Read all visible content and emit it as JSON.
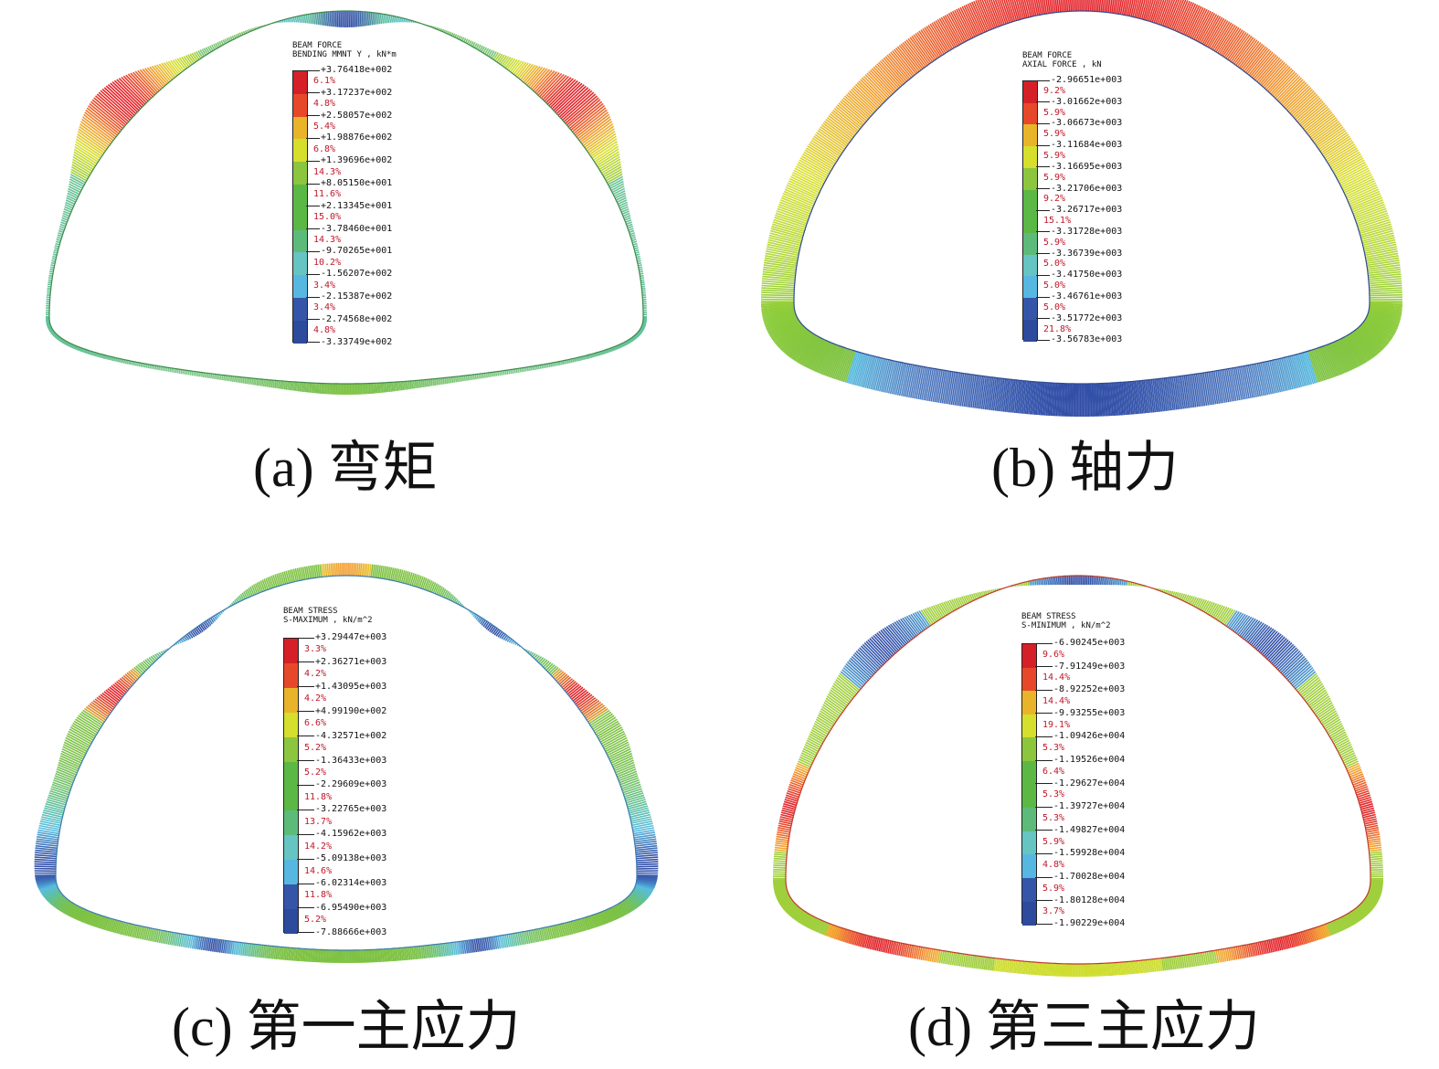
{
  "colors": [
    "#d62028",
    "#e8482a",
    "#e9b42a",
    "#d6df2c",
    "#8cc63e",
    "#5cb844",
    "#5dbb7a",
    "#66c4c2",
    "#56b8e0",
    "#3556a8",
    "#2d4a9c"
  ],
  "panels": [
    {
      "id": "a",
      "caption": "(a) 弯矩",
      "header": [
        "BEAM FORCE",
        "BENDING MMNT Y , kN*m"
      ],
      "values": [
        "+3.76418e+002",
        "+3.17237e+002",
        "+2.58057e+002",
        "+1.98876e+002",
        "+1.39696e+002",
        "+8.05150e+001",
        "+2.13345e+001",
        "-3.78460e+001",
        "-9.70265e+001",
        "-1.56207e+002",
        "-2.15387e+002",
        "-2.74568e+002",
        "-3.33749e+002"
      ],
      "percents": [
        "6.1%",
        "4.8%",
        "5.4%",
        "6.8%",
        "14.3%",
        "11.6%",
        "15.0%",
        "14.3%",
        "10.2%",
        "3.4%",
        "3.4%",
        "4.8%"
      ]
    },
    {
      "id": "b",
      "caption": "(b) 轴力",
      "header": [
        "BEAM FORCE",
        "AXIAL FORCE , kN"
      ],
      "values": [
        "-2.96651e+003",
        "-3.01662e+003",
        "-3.06673e+003",
        "-3.11684e+003",
        "-3.16695e+003",
        "-3.21706e+003",
        "-3.26717e+003",
        "-3.31728e+003",
        "-3.36739e+003",
        "-3.41750e+003",
        "-3.46761e+003",
        "-3.51772e+003",
        "-3.56783e+003"
      ],
      "percents": [
        "9.2%",
        "5.9%",
        "5.9%",
        "5.9%",
        "5.9%",
        "9.2%",
        "15.1%",
        "5.9%",
        "5.0%",
        "5.0%",
        "5.0%",
        "21.8%"
      ]
    },
    {
      "id": "c",
      "caption": "(c) 第一主应力",
      "header": [
        "BEAM STRESS",
        "S-MAXIMUM , kN/m^2"
      ],
      "values": [
        "+3.29447e+003",
        "+2.36271e+003",
        "+1.43095e+003",
        "+4.99190e+002",
        "-4.32571e+002",
        "-1.36433e+003",
        "-2.29609e+003",
        "-3.22765e+003",
        "-4.15962e+003",
        "-5.09138e+003",
        "-6.02314e+003",
        "-6.95490e+003",
        "-7.88666e+003"
      ],
      "percents": [
        "3.3%",
        "4.2%",
        "4.2%",
        "6.6%",
        "5.2%",
        "5.2%",
        "11.8%",
        "13.7%",
        "14.2%",
        "14.6%",
        "11.8%",
        "5.2%"
      ]
    },
    {
      "id": "d",
      "caption": "(d) 第三主应力",
      "header": [
        "BEAM STRESS",
        "S-MINIMUM , kN/m^2"
      ],
      "values": [
        "-6.90245e+003",
        "-7.91249e+003",
        "-8.92252e+003",
        "-9.93255e+003",
        "-1.09426e+004",
        "-1.19526e+004",
        "-1.29627e+004",
        "-1.39727e+004",
        "-1.49827e+004",
        "-1.59928e+004",
        "-1.70028e+004",
        "-1.80128e+004",
        "-1.90229e+004"
      ],
      "percents": [
        "9.6%",
        "14.4%",
        "14.4%",
        "19.1%",
        "5.3%",
        "6.4%",
        "5.3%",
        "5.3%",
        "5.9%",
        "4.8%",
        "5.9%",
        "3.7%"
      ]
    }
  ]
}
